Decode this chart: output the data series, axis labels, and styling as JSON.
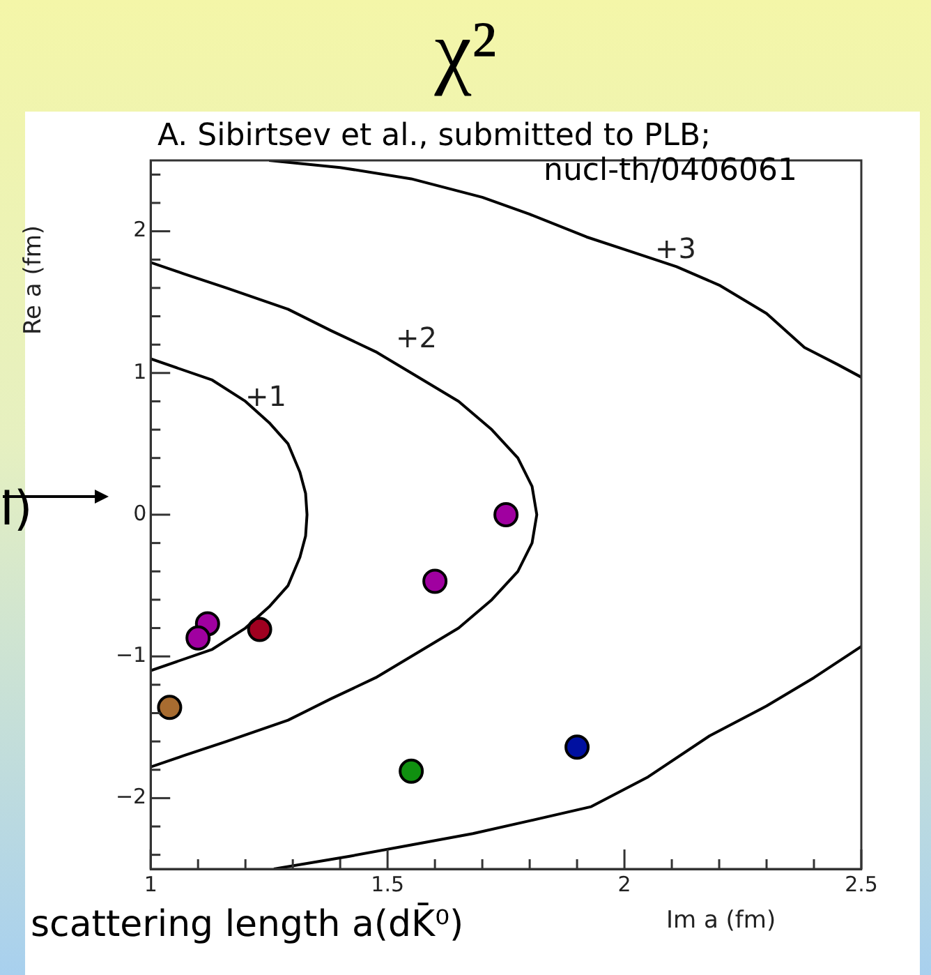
{
  "chart_data": {
    "type": "scatter",
    "title": "χ²",
    "xlabel": "Im a  (fm)",
    "ylabel": "Re a (fm)",
    "xlim": [
      1,
      2.5
    ],
    "ylim": [
      -2.5,
      2.5
    ],
    "xticks": [
      1,
      {
        "value": 1.1,
        "label": null
      },
      {
        "value": 1.2,
        "label": null
      },
      {
        "value": 1.3,
        "label": null
      },
      {
        "value": 1.4,
        "label": null
      },
      1.5,
      {
        "value": 1.6,
        "label": null
      },
      {
        "value": 1.7,
        "label": null
      },
      {
        "value": 1.8,
        "label": null
      },
      {
        "value": 1.9,
        "label": null
      },
      2,
      {
        "value": 2.1,
        "label": null
      },
      {
        "value": 2.2,
        "label": null
      },
      {
        "value": 2.3,
        "label": null
      },
      {
        "value": 2.4,
        "label": null
      },
      2.5
    ],
    "yticks": [
      {
        "value": -2.4,
        "label": null
      },
      {
        "value": -2.2,
        "label": null
      },
      -2,
      {
        "value": -1.8,
        "label": null
      },
      {
        "value": -1.6,
        "label": null
      },
      {
        "value": -1.4,
        "label": null
      },
      {
        "value": -1.2,
        "label": null
      },
      -1,
      {
        "value": -0.8,
        "label": null
      },
      {
        "value": -0.6,
        "label": null
      },
      {
        "value": -0.4,
        "label": null
      },
      {
        "value": -0.2,
        "label": null
      },
      0,
      {
        "value": 0.2,
        "label": null
      },
      {
        "value": 0.4,
        "label": null
      },
      {
        "value": 0.6,
        "label": null
      },
      {
        "value": 0.8,
        "label": null
      },
      1,
      {
        "value": 1.2,
        "label": null
      },
      {
        "value": 1.4,
        "label": null
      },
      {
        "value": 1.6,
        "label": null
      },
      {
        "value": 1.8,
        "label": null
      },
      2,
      {
        "value": 2.2,
        "label": null
      },
      {
        "value": 2.4,
        "label": null
      }
    ],
    "grid": false,
    "legend": false,
    "marker": "circle",
    "series": [
      {
        "type": "line",
        "color": "#000000",
        "marker": "none",
        "x": [
          1,
          1.13,
          1.2,
          1.25,
          1.29,
          1.315,
          1.327,
          1.33,
          1.327,
          1.315,
          1.29,
          1.25,
          1.2,
          1.13,
          1
        ],
        "values": [
          1.1,
          0.95,
          0.8,
          0.65,
          0.5,
          0.3,
          0.15,
          0,
          -0.15,
          -0.3,
          -0.5,
          -0.65,
          -0.8,
          -0.95,
          -1.1
        ]
      },
      {
        "type": "line",
        "color": "#000000",
        "marker": "none",
        "x": [
          1,
          1.07,
          1.16,
          1.29,
          1.38,
          1.475,
          1.55,
          1.65,
          1.72,
          1.775,
          1.805,
          1.815,
          1.805,
          1.775,
          1.72,
          1.65,
          1.55,
          1.475,
          1.38,
          1.29,
          1.16,
          1.07,
          1
        ],
        "values": [
          1.78,
          1.7,
          1.6,
          1.45,
          1.3,
          1.15,
          1,
          0.8,
          0.6,
          0.4,
          0.2,
          0,
          -0.2,
          -0.4,
          -0.6,
          -0.8,
          -1,
          -1.15,
          -1.3,
          -1.45,
          -1.6,
          -1.7,
          -1.78
        ]
      },
      {
        "type": "line",
        "color": "#000000",
        "marker": "none",
        "x": [
          1.25,
          1.4,
          1.55,
          1.7,
          1.8,
          1.92,
          2.02,
          2.11,
          2.2,
          2.3,
          2.38,
          2.45,
          2.5
        ],
        "values": [
          2.5,
          2.45,
          2.37,
          2.24,
          2.12,
          1.96,
          1.85,
          1.75,
          1.62,
          1.42,
          1.18,
          1.06,
          0.97
        ]
      },
      {
        "type": "line",
        "color": "#000000",
        "marker": "none",
        "x": [
          2.5,
          2.4,
          2.3,
          2.18,
          2.05,
          1.93,
          1.8,
          1.68,
          1.55,
          1.42,
          1.26
        ],
        "values": [
          -0.93,
          -1.15,
          -1.35,
          -1.56,
          -1.85,
          -2.06,
          -2.16,
          -2.25,
          -2.33,
          -2.41,
          -2.5
        ]
      },
      {
        "x": [
          1.75,
          1.6,
          1.12,
          1.1,
          1.23,
          1.04,
          1.55,
          1.9
        ],
        "values": [
          0,
          -0.47,
          -0.77,
          -0.87,
          -0.81,
          -1.36,
          -1.81,
          -1.64
        ],
        "colors": [
          "#a000a0",
          "#a000a0",
          "#a000a0",
          "#a000a0",
          "#a00020",
          "#a86c30",
          "#109010",
          "#0010a0"
        ]
      }
    ],
    "annotations": [
      "+1",
      "+2",
      "+3",
      "A. Sibirtsev et al., submitted to PLB;",
      "nucl-th/0406061",
      "scattering length a(dK̄⁰)",
      "I)"
    ]
  }
}
